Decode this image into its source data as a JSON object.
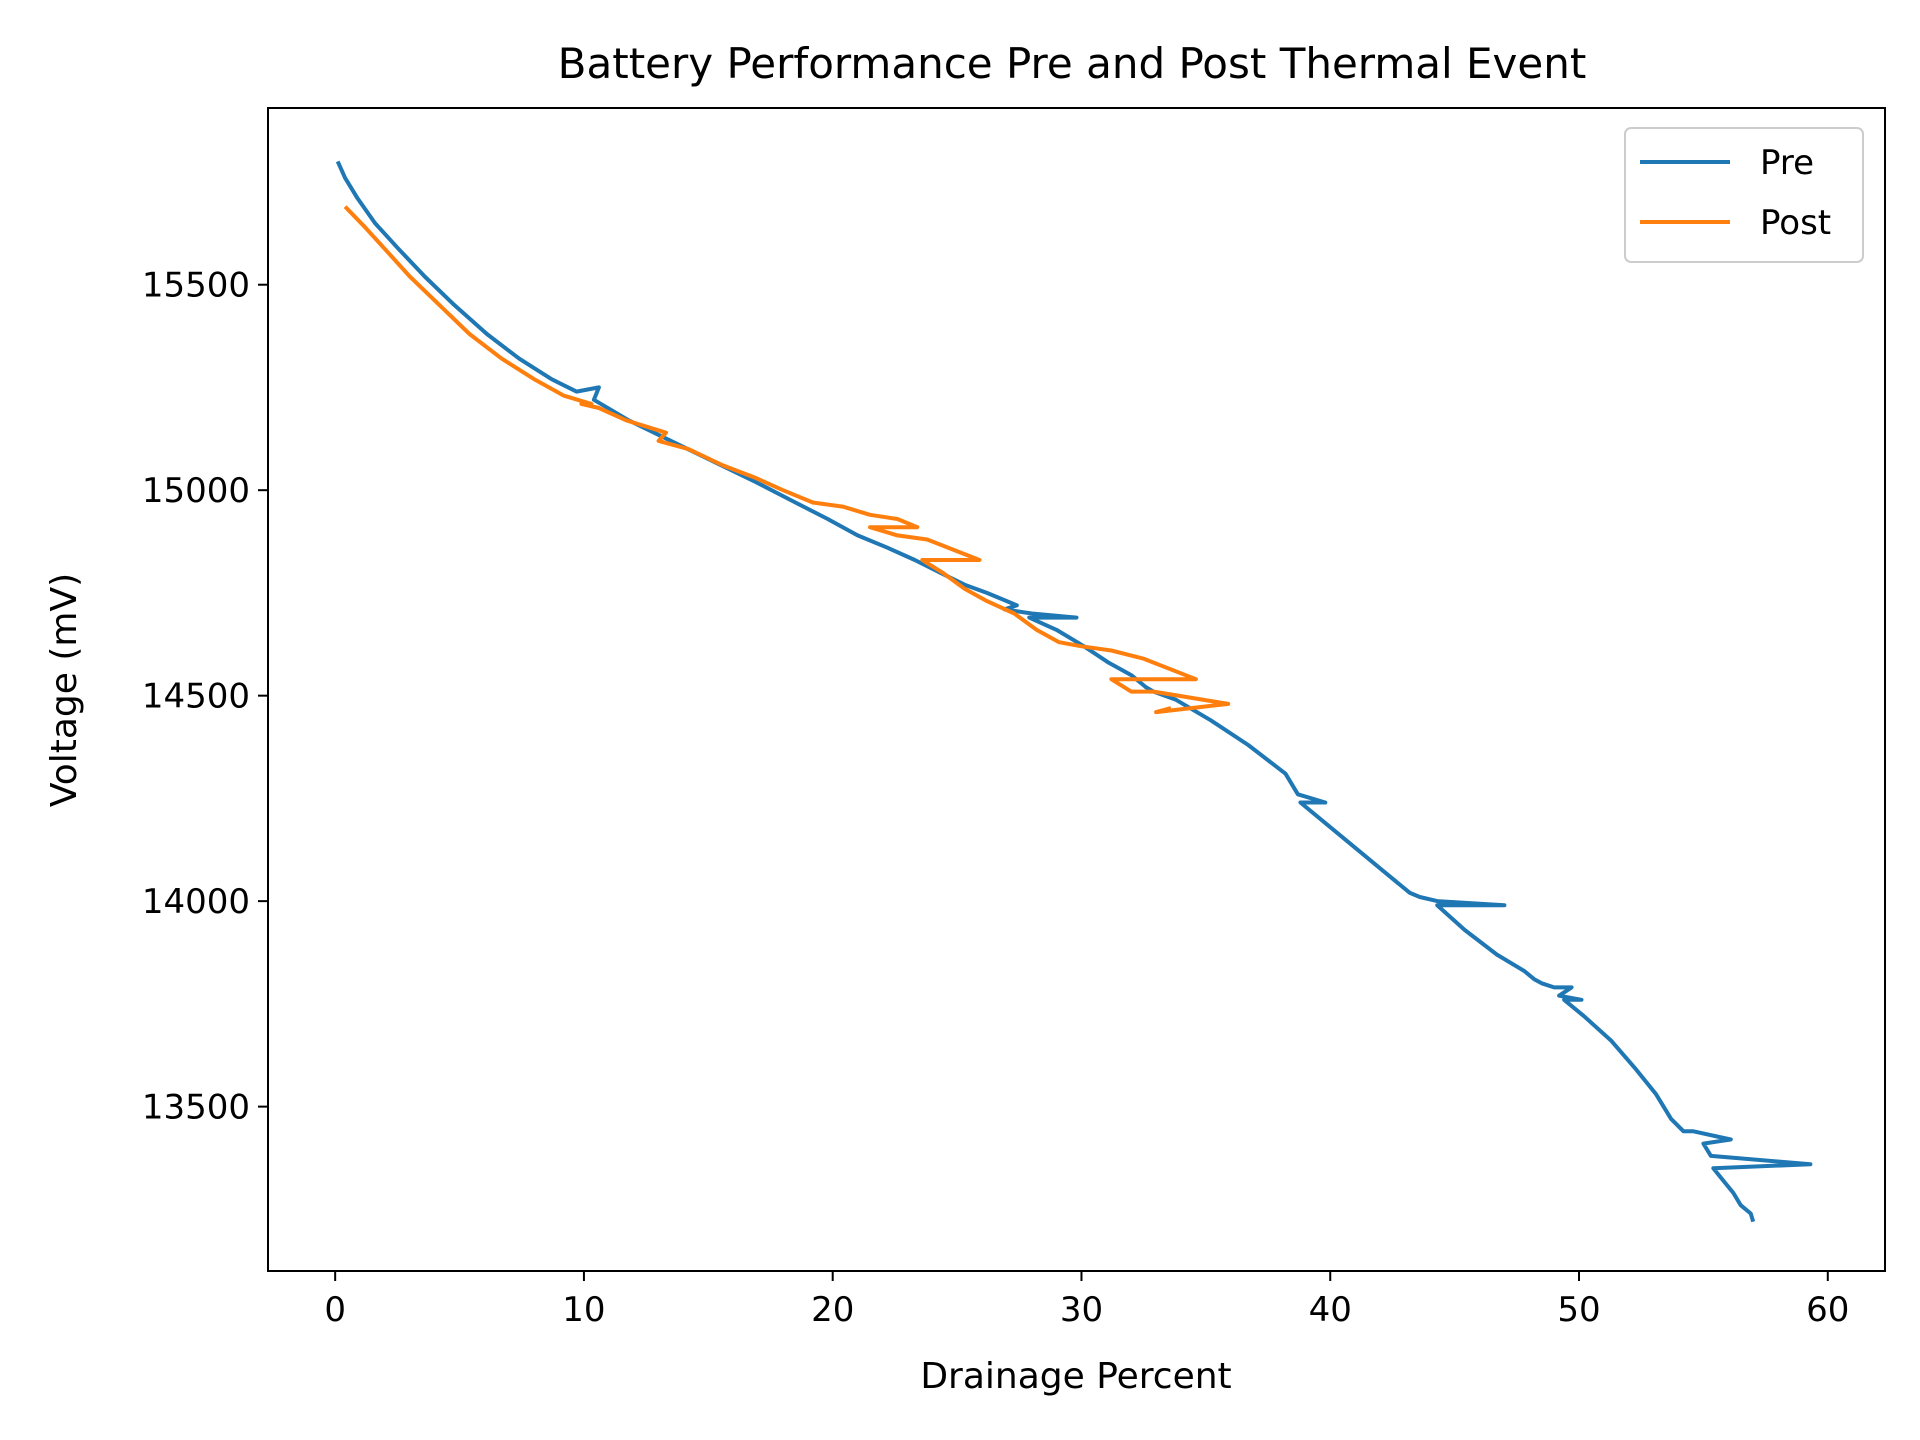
{
  "chart_data": {
    "type": "line",
    "title": "Battery Performance Pre and Post Thermal Event",
    "xlabel": "Drainage Percent",
    "ylabel": "Voltage (mV)",
    "xlim": [
      -2.7,
      62.3
    ],
    "ylim": [
      13100,
      15930
    ],
    "xticks": [
      0,
      10,
      20,
      30,
      40,
      50,
      60
    ],
    "yticks": [
      13500,
      14000,
      14500,
      15000,
      15500
    ],
    "grid": false,
    "legend_position": "top-right",
    "series": [
      {
        "name": "Pre",
        "color": "#1f77b4",
        "x": [
          0.1,
          0.4,
          0.9,
          1.6,
          2.5,
          3.6,
          4.8,
          6.1,
          7.4,
          8.7,
          9.7,
          10.6,
          10.4,
          11.8,
          13.5,
          15.2,
          16.9,
          18.5,
          19.8,
          21.0,
          22.2,
          23.3,
          24.3,
          25.3,
          26.2,
          27.0,
          27.4,
          26.9,
          28.0,
          29.8,
          27.9,
          29.0,
          30.1,
          31.1,
          32.0,
          32.6,
          32.9,
          33.8,
          35.2,
          36.7,
          38.2,
          38.7,
          39.8,
          38.8,
          39.8,
          41.0,
          42.2,
          43.2,
          43.6,
          44.3,
          47.0,
          44.3,
          45.4,
          46.7,
          47.8,
          48.2,
          48.5,
          49.0,
          49.7,
          49.2,
          50.1,
          49.4,
          50.2,
          51.3,
          52.3,
          53.1,
          53.7,
          54.2,
          54.6,
          56.1,
          55.0,
          55.3,
          59.3,
          55.4,
          55.8,
          56.2,
          56.5,
          56.9,
          57.0
        ],
        "y": [
          15800,
          15760,
          15710,
          15650,
          15590,
          15520,
          15450,
          15380,
          15320,
          15270,
          15240,
          15250,
          15220,
          15170,
          15120,
          15070,
          15020,
          14970,
          14930,
          14890,
          14860,
          14830,
          14800,
          14770,
          14750,
          14730,
          14720,
          14710,
          14700,
          14690,
          14690,
          14660,
          14620,
          14580,
          14550,
          14520,
          14510,
          14490,
          14440,
          14380,
          14310,
          14260,
          14240,
          14240,
          14190,
          14130,
          14070,
          14020,
          14010,
          14000,
          13990,
          13990,
          13930,
          13870,
          13830,
          13810,
          13800,
          13790,
          13790,
          13770,
          13760,
          13760,
          13720,
          13660,
          13590,
          13530,
          13470,
          13440,
          13440,
          13420,
          13410,
          13380,
          13360,
          13350,
          13320,
          13290,
          13260,
          13240,
          13220
        ]
      },
      {
        "name": "Post",
        "color": "#ff7f0e",
        "x": [
          0.4,
          1.2,
          2.1,
          3.0,
          4.2,
          5.4,
          6.7,
          8.0,
          9.2,
          10.3,
          9.9,
          10.6,
          11.7,
          13.3,
          13.0,
          14.2,
          15.6,
          16.9,
          18.0,
          19.2,
          20.4,
          21.5,
          22.6,
          23.4,
          21.5,
          22.6,
          23.8,
          25.9,
          23.6,
          24.4,
          25.3,
          26.2,
          27.3,
          28.2,
          29.1,
          30.0,
          31.2,
          32.5,
          34.6,
          31.2,
          32.0,
          32.9,
          35.9,
          33.0,
          33.6
        ],
        "y": [
          15690,
          15640,
          15580,
          15520,
          15450,
          15380,
          15320,
          15270,
          15230,
          15210,
          15210,
          15200,
          15170,
          15140,
          15120,
          15100,
          15060,
          15030,
          15000,
          14970,
          14960,
          14940,
          14930,
          14910,
          14910,
          14890,
          14880,
          14830,
          14830,
          14800,
          14760,
          14730,
          14700,
          14660,
          14630,
          14620,
          14610,
          14590,
          14540,
          14540,
          14510,
          14510,
          14480,
          14460,
          14470
        ]
      }
    ]
  }
}
